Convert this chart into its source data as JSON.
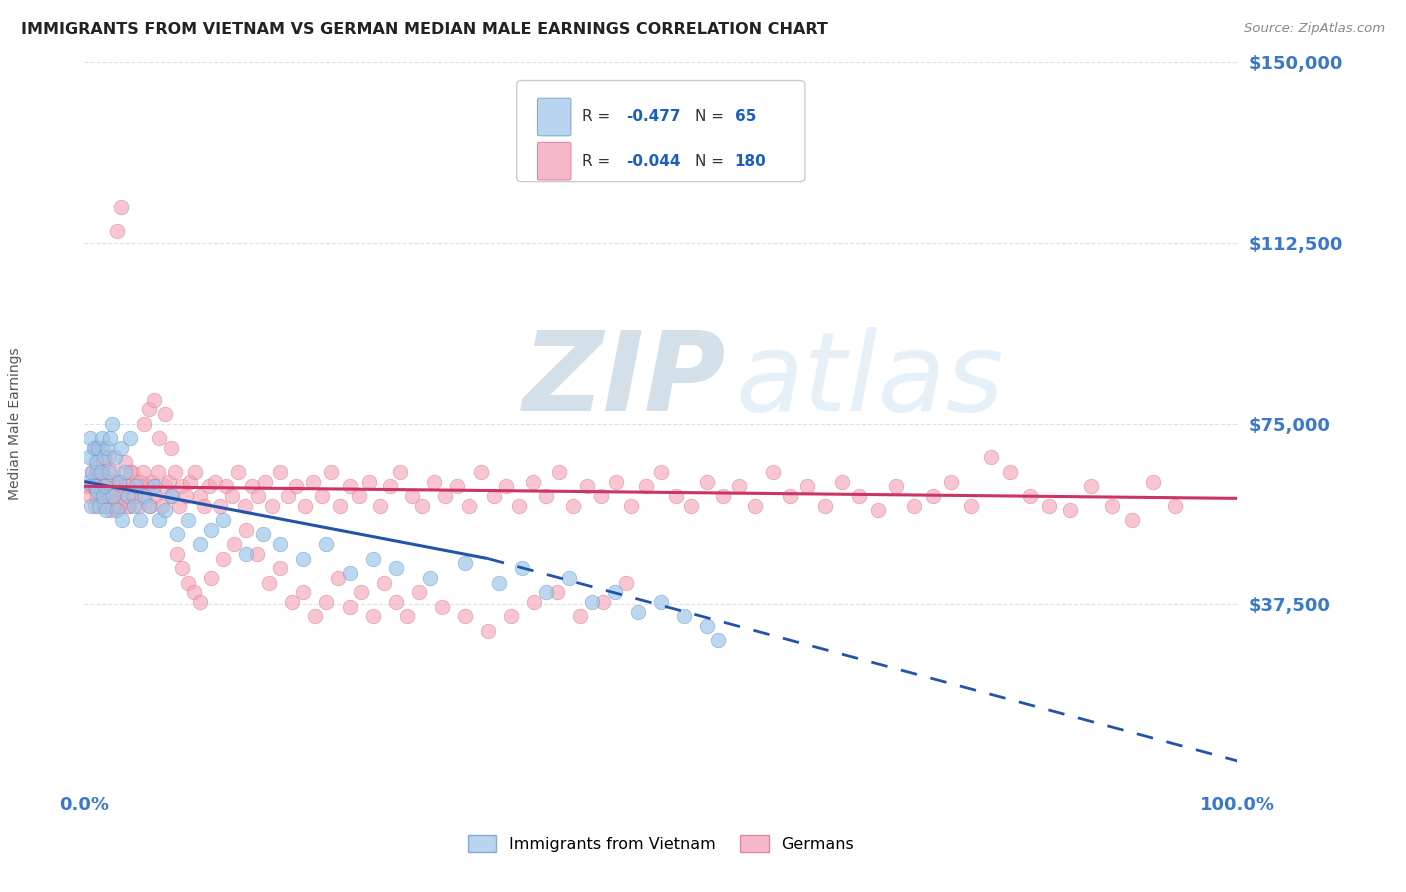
{
  "title": "IMMIGRANTS FROM VIETNAM VS GERMAN MEDIAN MALE EARNINGS CORRELATION CHART",
  "source_text": "Source: ZipAtlas.com",
  "ylabel": "Median Male Earnings",
  "xlim": [
    0,
    1.0
  ],
  "ylim": [
    0,
    150000
  ],
  "yticks": [
    0,
    37500,
    75000,
    112500,
    150000
  ],
  "ytick_labels": [
    "",
    "$37,500",
    "$75,000",
    "$112,500",
    "$150,000"
  ],
  "xticks": [
    0,
    0.25,
    0.5,
    0.75,
    1.0
  ],
  "xtick_labels": [
    "0.0%",
    "",
    "",
    "",
    "100.0%"
  ],
  "viet_color": "#99c4e8",
  "viet_edge": "#6699cc",
  "german_color": "#f5a8b8",
  "german_edge": "#dd7799",
  "axis_label_color": "#3a78c9",
  "title_color": "#222222",
  "source_color": "#888888",
  "grid_color": "#cccccc",
  "ylabel_color": "#555555",
  "background": "#ffffff",
  "reg_viet_color": "#2255aa",
  "reg_german_color": "#cc3366",
  "legend_text_color": "#333333",
  "legend_val_color": "#1a5fbf",
  "watermark_zip_color": "#b0c8d8",
  "watermark_atlas_color": "#c8dff0",
  "marker_size": 110,
  "marker_alpha": 0.65,
  "viet_x": [
    0.003,
    0.004,
    0.005,
    0.006,
    0.007,
    0.008,
    0.009,
    0.01,
    0.011,
    0.012,
    0.013,
    0.014,
    0.015,
    0.016,
    0.017,
    0.018,
    0.019,
    0.02,
    0.021,
    0.022,
    0.024,
    0.025,
    0.027,
    0.028,
    0.03,
    0.032,
    0.033,
    0.035,
    0.038,
    0.04,
    0.043,
    0.045,
    0.048,
    0.052,
    0.056,
    0.06,
    0.065,
    0.07,
    0.075,
    0.08,
    0.09,
    0.1,
    0.11,
    0.12,
    0.14,
    0.155,
    0.17,
    0.19,
    0.21,
    0.23,
    0.25,
    0.27,
    0.3,
    0.33,
    0.36,
    0.38,
    0.4,
    0.42,
    0.44,
    0.46,
    0.48,
    0.5,
    0.52,
    0.54,
    0.55
  ],
  "viet_y": [
    63000,
    68000,
    72000,
    58000,
    65000,
    70000,
    62000,
    67000,
    61000,
    70000,
    58000,
    65000,
    72000,
    60000,
    68000,
    62000,
    57000,
    70000,
    65000,
    72000,
    75000,
    60000,
    68000,
    57000,
    63000,
    70000,
    55000,
    65000,
    60000,
    72000,
    58000,
    62000,
    55000,
    60000,
    58000,
    62000,
    55000,
    57000,
    60000,
    52000,
    55000,
    50000,
    53000,
    55000,
    48000,
    52000,
    50000,
    47000,
    50000,
    44000,
    47000,
    45000,
    43000,
    46000,
    42000,
    45000,
    40000,
    43000,
    38000,
    40000,
    36000,
    38000,
    35000,
    33000,
    30000
  ],
  "german_x": [
    0.003,
    0.005,
    0.007,
    0.009,
    0.011,
    0.013,
    0.015,
    0.017,
    0.019,
    0.021,
    0.023,
    0.025,
    0.027,
    0.029,
    0.031,
    0.033,
    0.035,
    0.037,
    0.039,
    0.041,
    0.043,
    0.045,
    0.047,
    0.049,
    0.051,
    0.053,
    0.055,
    0.057,
    0.059,
    0.061,
    0.064,
    0.067,
    0.07,
    0.073,
    0.076,
    0.079,
    0.082,
    0.085,
    0.088,
    0.092,
    0.096,
    0.1,
    0.104,
    0.108,
    0.113,
    0.118,
    0.123,
    0.128,
    0.133,
    0.139,
    0.145,
    0.151,
    0.157,
    0.163,
    0.17,
    0.177,
    0.184,
    0.191,
    0.198,
    0.206,
    0.214,
    0.222,
    0.23,
    0.238,
    0.247,
    0.256,
    0.265,
    0.274,
    0.284,
    0.293,
    0.303,
    0.313,
    0.323,
    0.334,
    0.344,
    0.355,
    0.366,
    0.377,
    0.389,
    0.4,
    0.412,
    0.424,
    0.436,
    0.448,
    0.461,
    0.474,
    0.487,
    0.5,
    0.513,
    0.526,
    0.54,
    0.554,
    0.568,
    0.582,
    0.597,
    0.612,
    0.627,
    0.642,
    0.657,
    0.672,
    0.688,
    0.704,
    0.72,
    0.736,
    0.752,
    0.769,
    0.786,
    0.803,
    0.82,
    0.837,
    0.855,
    0.873,
    0.891,
    0.909,
    0.927,
    0.946,
    0.009,
    0.016,
    0.024,
    0.031,
    0.038,
    0.01,
    0.014,
    0.018,
    0.022,
    0.026,
    0.007,
    0.011,
    0.015,
    0.019,
    0.03,
    0.008,
    0.012,
    0.016,
    0.02,
    0.025,
    0.009,
    0.013,
    0.017,
    0.023,
    0.028,
    0.032,
    0.036,
    0.04,
    0.044,
    0.048,
    0.052,
    0.056,
    0.06,
    0.065,
    0.07,
    0.075,
    0.08,
    0.085,
    0.09,
    0.095,
    0.1,
    0.11,
    0.12,
    0.13,
    0.14,
    0.15,
    0.16,
    0.17,
    0.18,
    0.19,
    0.2,
    0.21,
    0.22,
    0.23,
    0.24,
    0.25,
    0.26,
    0.27,
    0.28,
    0.29,
    0.31,
    0.33,
    0.35,
    0.37,
    0.39,
    0.41,
    0.43,
    0.45,
    0.47
  ],
  "german_y": [
    62000,
    60000,
    65000,
    58000,
    67000,
    62000,
    70000,
    63000,
    60000,
    68000,
    57000,
    65000,
    62000,
    58000,
    63000,
    60000,
    67000,
    62000,
    58000,
    65000,
    60000,
    63000,
    58000,
    62000,
    65000,
    60000,
    62000,
    58000,
    63000,
    60000,
    65000,
    58000,
    62000,
    63000,
    60000,
    65000,
    58000,
    62000,
    60000,
    63000,
    65000,
    60000,
    58000,
    62000,
    63000,
    58000,
    62000,
    60000,
    65000,
    58000,
    62000,
    60000,
    63000,
    58000,
    65000,
    60000,
    62000,
    58000,
    63000,
    60000,
    65000,
    58000,
    62000,
    60000,
    63000,
    58000,
    62000,
    65000,
    60000,
    58000,
    63000,
    60000,
    62000,
    58000,
    65000,
    60000,
    62000,
    58000,
    63000,
    60000,
    65000,
    58000,
    62000,
    60000,
    63000,
    58000,
    62000,
    65000,
    60000,
    58000,
    63000,
    60000,
    62000,
    58000,
    65000,
    60000,
    62000,
    58000,
    63000,
    60000,
    57000,
    62000,
    58000,
    60000,
    63000,
    58000,
    68000,
    65000,
    60000,
    58000,
    57000,
    62000,
    58000,
    55000,
    63000,
    58000,
    70000,
    67000,
    63000,
    60000,
    58000,
    65000,
    62000,
    63000,
    60000,
    58000,
    62000,
    60000,
    65000,
    63000,
    58000,
    62000,
    65000,
    60000,
    63000,
    58000,
    62000,
    65000,
    58000,
    60000,
    115000,
    120000,
    62000,
    65000,
    60000,
    63000,
    75000,
    78000,
    80000,
    72000,
    77000,
    70000,
    48000,
    45000,
    42000,
    40000,
    38000,
    43000,
    47000,
    50000,
    53000,
    48000,
    42000,
    45000,
    38000,
    40000,
    35000,
    38000,
    43000,
    37000,
    40000,
    35000,
    42000,
    38000,
    35000,
    40000,
    37000,
    35000,
    32000,
    35000,
    38000,
    40000,
    35000,
    38000,
    42000
  ]
}
